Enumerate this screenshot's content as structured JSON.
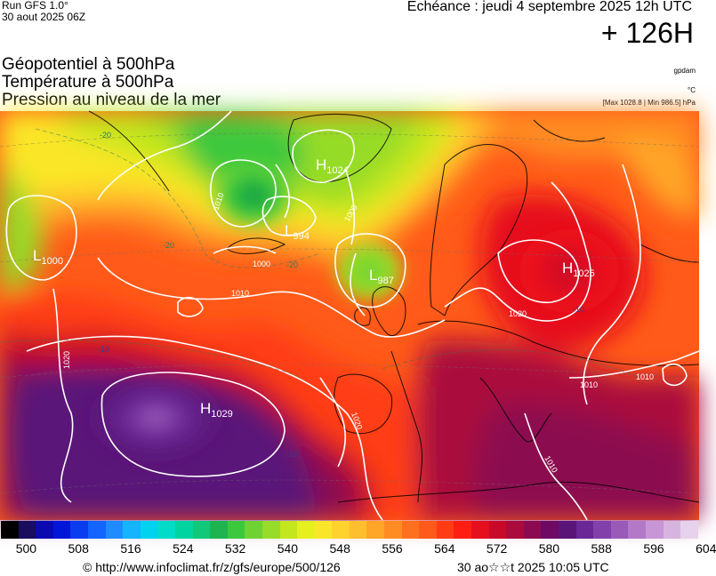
{
  "header": {
    "run": "Run GFS 1.0°",
    "run_date": "30 aout 2025 06Z",
    "echeance": "Echéance : jeudi 4 septembre 2025 12h UTC",
    "lead_time": "+ 126H",
    "titles": [
      "Géopotentiel à 500hPa",
      "Température à 500hPa",
      "Pression au niveau de la mer"
    ],
    "units": [
      "gpdam",
      "°C",
      "[Max 1028.8 | Min 986.5] hPa"
    ]
  },
  "map": {
    "pressure_centers": [
      {
        "letter": "H",
        "value": "1024"
      },
      {
        "letter": "L",
        "value": "994"
      },
      {
        "letter": "L",
        "value": "987"
      },
      {
        "letter": "L",
        "value": "1000"
      },
      {
        "letter": "H",
        "value": "1025"
      },
      {
        "letter": "H",
        "value": "1029"
      }
    ],
    "isobar_labels": [
      "1010",
      "1000",
      "1020",
      "1010",
      "1020",
      "1010",
      "1020",
      "1010",
      "1000",
      "1010"
    ],
    "temp_labels": [
      "-20",
      "-20",
      "-20",
      "-10",
      "-10",
      "-10"
    ]
  },
  "scale": {
    "colors": [
      "#000000",
      "#1a0c5e",
      "#0a0ab0",
      "#0016d8",
      "#0a3cf0",
      "#1464ff",
      "#1e8cff",
      "#14b4ff",
      "#00d2f0",
      "#00dcc8",
      "#00d4a0",
      "#10c878",
      "#1eb450",
      "#3cc83c",
      "#6ed232",
      "#96dc28",
      "#c3e61e",
      "#e6f01e",
      "#fae628",
      "#ffd22d",
      "#ffbe2d",
      "#ffa528",
      "#ff8c23",
      "#ff701e",
      "#ff5a19",
      "#ff3c14",
      "#ff1e14",
      "#e60f1e",
      "#c80a28",
      "#aa0a3c",
      "#8c0a50",
      "#6e0a64",
      "#5a1478",
      "#6a2896",
      "#8240aa",
      "#9a5ab8",
      "#b478c8",
      "#c896d6",
      "#d7b4e0",
      "#e6d2ec"
    ],
    "labels": [
      "500",
      "508",
      "516",
      "524",
      "532",
      "540",
      "548",
      "556",
      "564",
      "572",
      "580",
      "588",
      "596",
      "604"
    ]
  },
  "footer": {
    "url": "© http://www.infoclimat.fr/z/gfs/europe/500/126",
    "date": "30 ao☆☆t 2025 10:05 UTC"
  }
}
